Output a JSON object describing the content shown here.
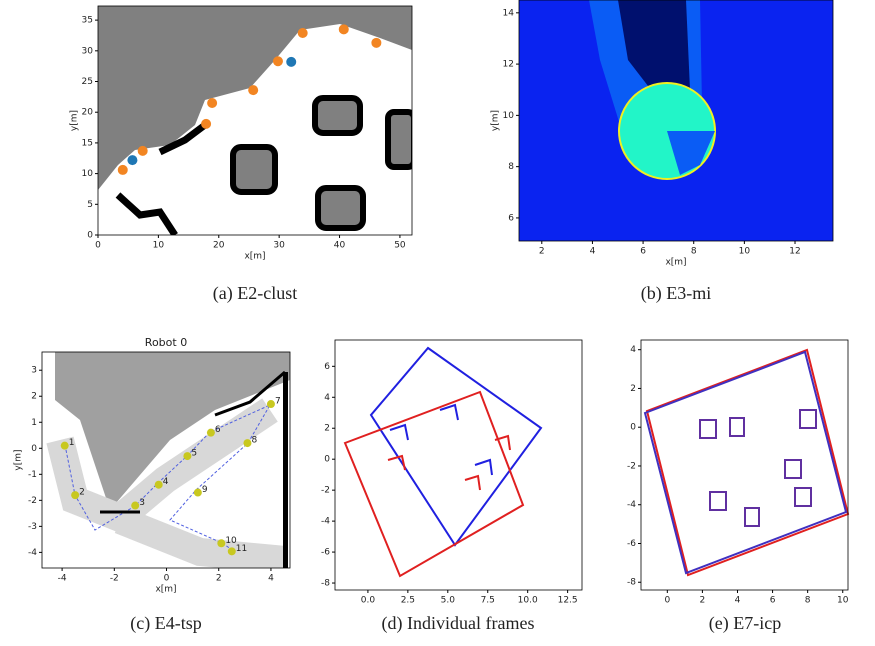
{
  "chart_data": [
    {
      "type": "scatter",
      "caption": "(a) E2-clust",
      "xlabel": "x[m]",
      "ylabel": "y[m]",
      "xlim": [
        0,
        52
      ],
      "ylim": [
        0,
        37.3
      ],
      "xticks": [
        0,
        10,
        20,
        30,
        40,
        50
      ],
      "yticks": [
        0,
        5,
        10,
        15,
        20,
        25,
        30,
        35
      ],
      "series": [
        {
          "color": "#f28522",
          "x": [
            4.1,
            7.4,
            17.9,
            18.9,
            25.7,
            29.8,
            33.9,
            40.7,
            46.1
          ],
          "values": [
            10.6,
            13.7,
            18.1,
            21.5,
            23.6,
            28.3,
            32.9,
            33.5,
            31.3
          ]
        },
        {
          "color": "#1f77b4",
          "x": [
            5.7,
            32
          ],
          "values": [
            12.2,
            28.2
          ]
        }
      ]
    },
    {
      "type": "image",
      "caption": "(b) E3-mi",
      "xlabel": "x[m]",
      "ylabel": "y[m]",
      "xlim": [
        1.1,
        13.5
      ],
      "ylim": [
        5.1,
        14.5
      ],
      "xticks": [
        2,
        4,
        6,
        8,
        10,
        12
      ],
      "yticks": [
        6,
        8,
        10,
        12,
        14
      ]
    },
    {
      "type": "scatter",
      "caption": "(c) E4-tsp",
      "title": "Robot 0",
      "xlabel": "x[m]",
      "ylabel": "y[m]",
      "xlim": [
        -4.77,
        4.73
      ],
      "ylim": [
        -4.6,
        3.7
      ],
      "xticks": [
        -4,
        -2,
        0,
        2,
        4
      ],
      "yticks": [
        -4,
        -3,
        -2,
        -1,
        0,
        1,
        2,
        3
      ],
      "series": [
        {
          "color": "#c8c820",
          "x": [
            -3.9,
            -3.5,
            -1.2,
            -0.3,
            0.8,
            1.7,
            4,
            3.1,
            1.2,
            2.1,
            2.5
          ],
          "values": [
            0.1,
            -1.8,
            -2.2,
            -1.4,
            -0.3,
            0.6,
            1.7,
            0.2,
            -1.7,
            -3.65,
            -3.96
          ],
          "point_labels": [
            "1",
            "2",
            "3",
            "4",
            "5",
            "6",
            "7",
            "8",
            "9",
            "10",
            "11"
          ]
        }
      ]
    },
    {
      "type": "image",
      "caption": "(d) Individual frames",
      "xlim": [
        -2.06,
        13.4
      ],
      "ylim": [
        -8.45,
        7.7
      ],
      "xticks": [
        {
          "value": 0,
          "label": "0.0"
        },
        {
          "value": 2.5,
          "label": "2.5"
        },
        {
          "value": 5,
          "label": "5.0"
        },
        {
          "value": 7.5,
          "label": "7.5"
        },
        {
          "value": 10,
          "label": "10.0"
        },
        {
          "value": 12.5,
          "label": "12.5"
        }
      ],
      "yticks": [
        -8,
        -6,
        -4,
        -2,
        0,
        2,
        4,
        6
      ]
    },
    {
      "type": "image",
      "caption": "(e) E7-icp",
      "xlim": [
        -1.5,
        10.3
      ],
      "ylim": [
        -8.4,
        4.5
      ],
      "xticks": [
        0,
        2,
        4,
        6,
        8,
        10
      ],
      "yticks": [
        -8,
        -6,
        -4,
        -2,
        0,
        2,
        4
      ]
    }
  ]
}
